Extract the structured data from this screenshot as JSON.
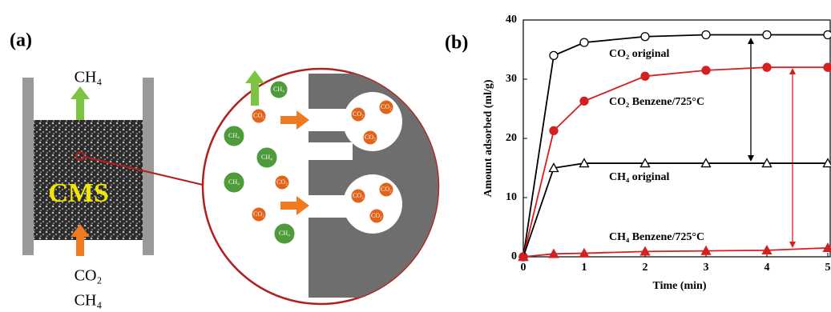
{
  "panel_a": {
    "label": "(a)",
    "outlet": "CH₄",
    "material": "CMS",
    "inlet": [
      "CO₂",
      "CH₄"
    ],
    "molecule_labels": {
      "ch4": "CH₄",
      "co2": "CO₂"
    }
  },
  "chart_data": {
    "type": "line",
    "panel_label": "(b)",
    "x_label": "Time (min)",
    "y_label": "Amount adsorbed (ml/g)",
    "x": [
      0,
      0.5,
      1,
      2,
      3,
      4,
      5
    ],
    "xlim": [
      0,
      5
    ],
    "xticks": [
      0,
      1,
      2,
      3,
      4,
      5
    ],
    "ylim": [
      0,
      40
    ],
    "yticks": [
      0,
      10,
      20,
      30,
      40
    ],
    "series": [
      {
        "name": "CO₂ original",
        "color": "#000000",
        "marker": "open-circle",
        "values": [
          0,
          34,
          36.2,
          37.2,
          37.5,
          37.5,
          37.5
        ]
      },
      {
        "name": "CO₂ Benzene/725°C",
        "color": "#d42020",
        "marker": "filled-circle",
        "values": [
          0,
          21.3,
          26.3,
          30.5,
          31.5,
          32,
          32
        ]
      },
      {
        "name": "CH₄ original",
        "color": "#000000",
        "marker": "open-triangle",
        "values": [
          0,
          15,
          15.8,
          15.8,
          15.8,
          15.8,
          15.8
        ]
      },
      {
        "name": "CH₄ Benzene/725°C",
        "color": "#d42020",
        "marker": "filled-triangle",
        "values": [
          0,
          0.5,
          0.6,
          0.9,
          1.0,
          1.1,
          1.5
        ]
      }
    ]
  }
}
